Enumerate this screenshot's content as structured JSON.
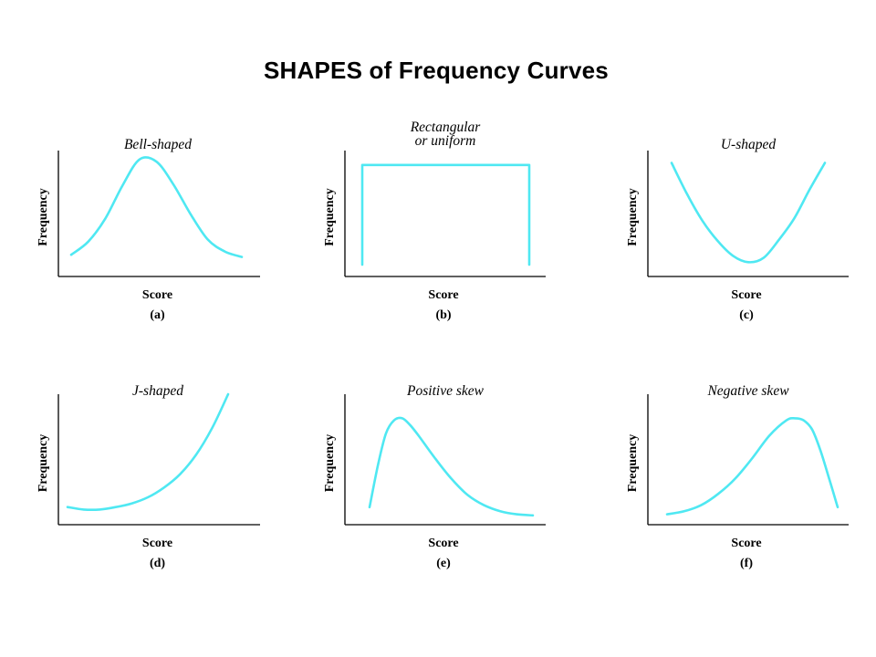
{
  "title": "SHAPES of Frequency Curves",
  "colors": {
    "curve": "#4FE8F2",
    "axis": "#000000",
    "text": "#000000"
  },
  "chart_data": [
    {
      "type": "line",
      "shape": "bell",
      "title": [
        "Bell-shaped"
      ],
      "label": "(a)",
      "xlabel": "Score",
      "ylabel": "Frequency",
      "x": [
        0,
        0.1,
        0.2,
        0.3,
        0.4,
        0.5,
        0.6,
        0.7,
        0.8,
        0.9,
        1.0
      ],
      "y": [
        0.09,
        0.21,
        0.42,
        0.72,
        0.96,
        0.94,
        0.73,
        0.46,
        0.23,
        0.12,
        0.07
      ]
    },
    {
      "type": "line",
      "shape": "rectangular",
      "title": [
        "Rectangular",
        "or uniform"
      ],
      "label": "(b)",
      "xlabel": "Score",
      "ylabel": "Frequency",
      "x": [
        0,
        0,
        1,
        1
      ],
      "y": [
        0.0,
        0.95,
        0.95,
        0.0
      ]
    },
    {
      "type": "line",
      "shape": "u",
      "title": [
        "U-shaped"
      ],
      "label": "(c)",
      "xlabel": "Score",
      "ylabel": "Frequency",
      "x": [
        0,
        0.1,
        0.2,
        0.3,
        0.4,
        0.5,
        0.6,
        0.7,
        0.8,
        0.9,
        1.0
      ],
      "y": [
        0.97,
        0.68,
        0.43,
        0.24,
        0.1,
        0.04,
        0.08,
        0.25,
        0.45,
        0.72,
        0.97
      ]
    },
    {
      "type": "line",
      "shape": "j",
      "title": [
        "J-shaped"
      ],
      "label": "(d)",
      "xlabel": "Score",
      "ylabel": "Frequency",
      "x": [
        0,
        0.1,
        0.2,
        0.3,
        0.4,
        0.5,
        0.6,
        0.7,
        0.8,
        0.9,
        1.0
      ],
      "y": [
        0.07,
        0.05,
        0.05,
        0.07,
        0.1,
        0.15,
        0.23,
        0.34,
        0.5,
        0.72,
        1.0
      ]
    },
    {
      "type": "line",
      "shape": "positive-skew",
      "title": [
        "Positive skew"
      ],
      "label": "(e)",
      "xlabel": "Score",
      "ylabel": "Frequency",
      "x": [
        0,
        0.05,
        0.1,
        0.15,
        0.2,
        0.25,
        0.3,
        0.4,
        0.5,
        0.6,
        0.7,
        0.8,
        0.9,
        1.0
      ],
      "y": [
        0.1,
        0.5,
        0.82,
        0.95,
        0.97,
        0.9,
        0.8,
        0.58,
        0.38,
        0.22,
        0.12,
        0.06,
        0.03,
        0.02
      ]
    },
    {
      "type": "line",
      "shape": "negative-skew",
      "title": [
        "Negative skew"
      ],
      "label": "(f)",
      "xlabel": "Score",
      "ylabel": "Frequency",
      "x": [
        0,
        0.1,
        0.2,
        0.3,
        0.4,
        0.5,
        0.6,
        0.7,
        0.75,
        0.8,
        0.85,
        0.9,
        0.95,
        1.0
      ],
      "y": [
        0.03,
        0.06,
        0.12,
        0.23,
        0.38,
        0.58,
        0.8,
        0.95,
        0.97,
        0.95,
        0.86,
        0.65,
        0.38,
        0.1
      ]
    }
  ]
}
